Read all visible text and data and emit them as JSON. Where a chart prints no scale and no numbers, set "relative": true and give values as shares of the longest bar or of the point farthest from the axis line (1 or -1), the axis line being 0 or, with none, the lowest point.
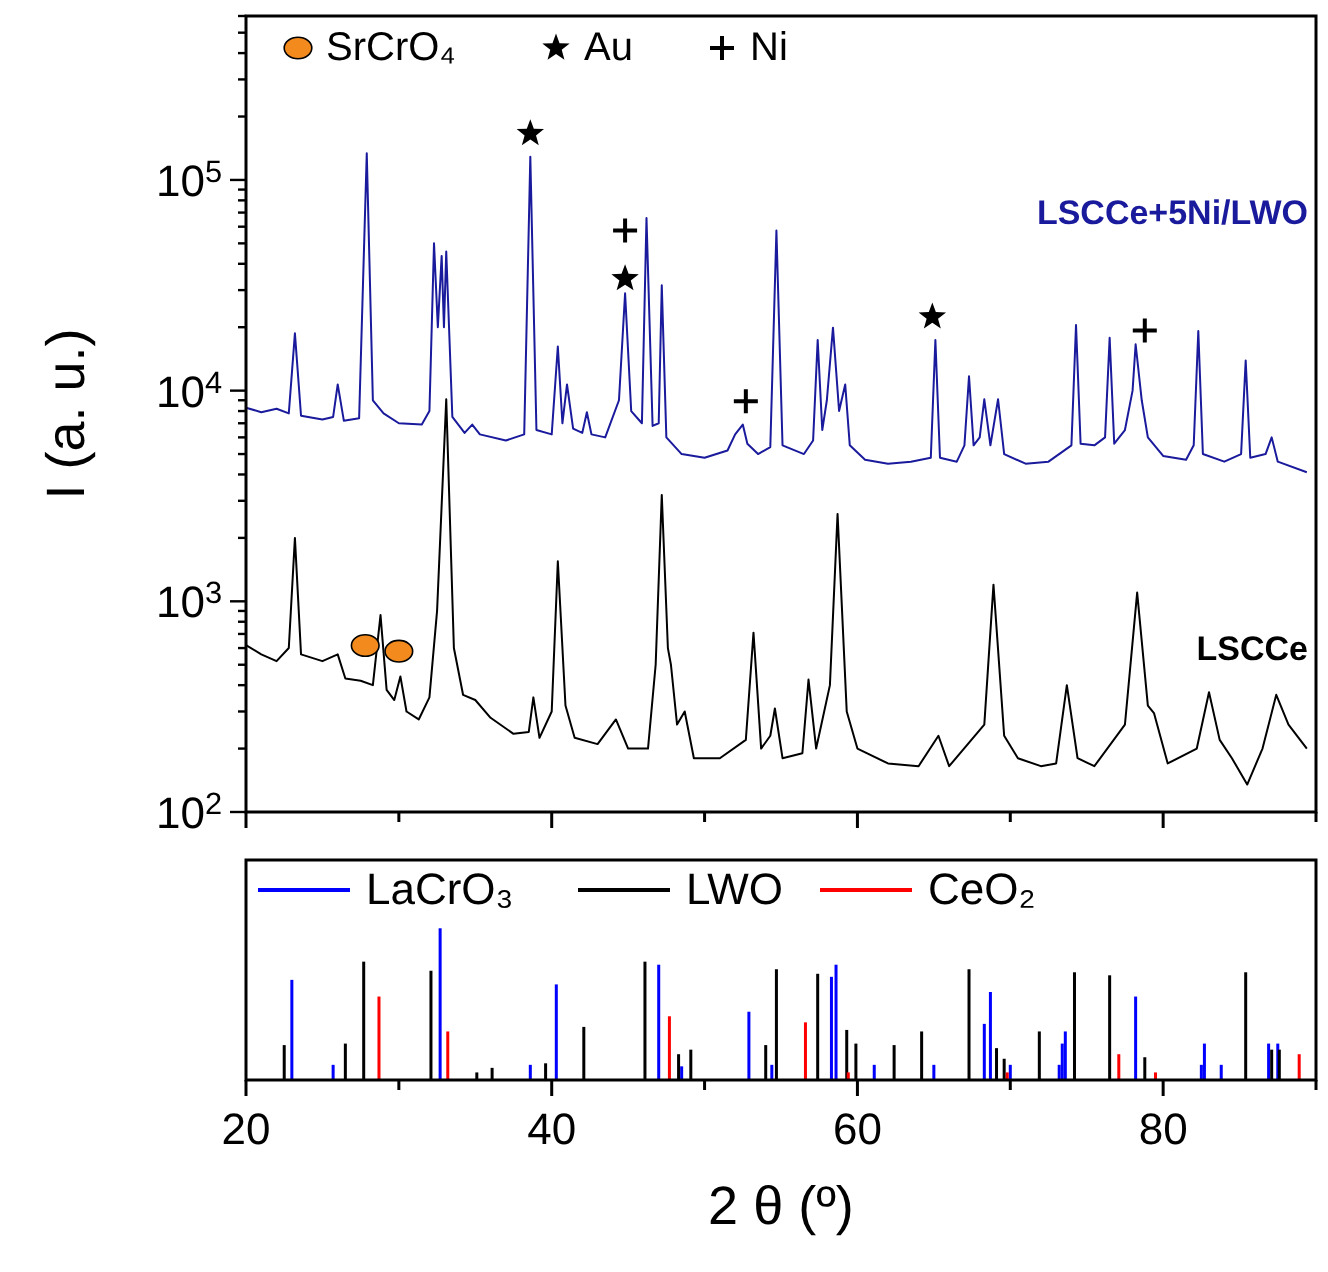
{
  "chart_data": [
    {
      "type": "line",
      "ylabel": "I (a. u.)",
      "log": true,
      "xlim": [
        20,
        90
      ],
      "xticks": [
        20,
        {
          "value": 30,
          "label": null
        },
        40,
        {
          "value": 50,
          "label": null
        },
        60,
        {
          "value": 70,
          "label": null
        },
        80,
        {
          "value": 90,
          "label": null
        }
      ],
      "ylim": [
        100,
        600000
      ],
      "yticks": [
        {
          "value": 100,
          "label": "10$^{2}$"
        },
        {
          "value": 200,
          "label": null
        },
        {
          "value": 300,
          "label": null
        },
        {
          "value": 400,
          "label": null
        },
        {
          "value": 500,
          "label": null
        },
        {
          "value": 600,
          "label": null
        },
        {
          "value": 700,
          "label": null
        },
        {
          "value": 800,
          "label": null
        },
        {
          "value": 900,
          "label": null
        },
        {
          "value": 1000,
          "label": "10$^{3}$"
        },
        {
          "value": 2000,
          "label": null
        },
        {
          "value": 3000,
          "label": null
        },
        {
          "value": 4000,
          "label": null
        },
        {
          "value": 5000,
          "label": null
        },
        {
          "value": 6000,
          "label": null
        },
        {
          "value": 7000,
          "label": null
        },
        {
          "value": 8000,
          "label": null
        },
        {
          "value": 9000,
          "label": null
        },
        {
          "value": 10000,
          "label": "10$^{4}$"
        },
        {
          "value": 20000,
          "label": null
        },
        {
          "value": 30000,
          "label": null
        },
        {
          "value": 40000,
          "label": null
        },
        {
          "value": 50000,
          "label": null
        },
        {
          "value": 60000,
          "label": null
        },
        {
          "value": 70000,
          "label": null
        },
        {
          "value": 80000,
          "label": null
        },
        {
          "value": 90000,
          "label": null
        },
        {
          "value": 100000,
          "label": "10$^{5}$"
        },
        {
          "value": 200000,
          "label": null
        },
        {
          "value": 300000,
          "label": null
        },
        {
          "value": 400000,
          "label": null
        },
        {
          "value": 500000,
          "label": null
        },
        {
          "value": 600000,
          "label": null
        }
      ],
      "tick_labels": "y",
      "legend": "top left",
      "grid": false,
      "series": [
        {
          "name": "LSCCe+5Ni/LWO",
          "color": "#1a1a9c",
          "x": [
            20.0,
            21,
            22,
            22.8,
            23.2,
            23.6,
            25,
            25.7,
            26.0,
            26.4,
            27.4,
            27.9,
            28.3,
            29,
            30,
            31.5,
            32.0,
            32.3,
            32.55,
            32.8,
            32.95,
            33.1,
            33.5,
            34.3,
            34.8,
            35.3,
            37,
            38.2,
            38.6,
            39.0,
            40.0,
            40.4,
            40.7,
            41.0,
            41.4,
            42.0,
            42.3,
            42.6,
            43.5,
            44.4,
            44.8,
            45.2,
            45.9,
            46.2,
            46.6,
            47.0,
            47.2,
            47.5,
            48.5,
            50,
            51.5,
            52.0,
            52.5,
            52.8,
            53.5,
            54.3,
            54.7,
            55.1,
            56.5,
            57.1,
            57.4,
            57.7,
            58.0,
            58.4,
            58.8,
            59.2,
            59.5,
            60.5,
            62,
            63.5,
            64.8,
            65.1,
            65.4,
            66.5,
            67.0,
            67.3,
            67.6,
            68.0,
            68.3,
            68.7,
            69.2,
            69.6,
            71,
            72.5,
            74.0,
            74.3,
            74.6,
            75.5,
            76.2,
            76.5,
            76.8,
            77.5,
            78.0,
            78.2,
            78.6,
            79.0,
            80,
            81.5,
            82.0,
            82.3,
            82.6,
            84,
            85.1,
            85.4,
            85.7,
            86.7,
            87.1,
            87.5,
            89.4
          ],
          "values": [
            8300,
            7900,
            8200,
            7800,
            18700,
            7600,
            7300,
            7500,
            10700,
            7200,
            7400,
            134000,
            9000,
            7800,
            7000,
            6900,
            8000,
            50000,
            20000,
            43600,
            20000,
            45700,
            7500,
            6300,
            6900,
            6200,
            5800,
            6200,
            129000,
            6500,
            6200,
            16200,
            7000,
            10700,
            6600,
            6300,
            7900,
            6200,
            6000,
            9000,
            29000,
            8000,
            7000,
            66000,
            6800,
            7000,
            31600,
            6000,
            5000,
            4800,
            5200,
            6200,
            6900,
            5600,
            5000,
            5400,
            57500,
            5500,
            5000,
            5800,
            17400,
            6500,
            9000,
            19900,
            8000,
            10700,
            5500,
            4700,
            4500,
            4600,
            4800,
            17400,
            4800,
            4600,
            5500,
            11700,
            5500,
            6000,
            9100,
            5500,
            9100,
            5000,
            4500,
            4600,
            5500,
            20500,
            5600,
            5500,
            6000,
            17800,
            5600,
            6500,
            10000,
            16600,
            9000,
            6000,
            4900,
            4700,
            5500,
            19200,
            5000,
            4600,
            5000,
            13900,
            4800,
            5000,
            6000,
            4600,
            4100
          ]
        },
        {
          "name": "LSCCe",
          "color": "#000000",
          "x": [
            20.0,
            21,
            22,
            22.8,
            23.2,
            23.6,
            25,
            26.0,
            26.5,
            27.5,
            28.3,
            28.8,
            29.2,
            29.7,
            30.1,
            30.5,
            31.3,
            32,
            32.5,
            33.1,
            33.6,
            34.2,
            35,
            36,
            37.5,
            38.5,
            38.8,
            39.2,
            40.0,
            40.4,
            40.9,
            41.5,
            43,
            44.2,
            45,
            46.3,
            46.8,
            47.2,
            47.6,
            47.8,
            48.2,
            48.7,
            49.3,
            51,
            52.7,
            53.2,
            53.7,
            54.3,
            54.6,
            55.1,
            56.4,
            56.8,
            57.3,
            58.2,
            58.7,
            59.3,
            60,
            62,
            64,
            65.3,
            66,
            68.3,
            68.9,
            69.6,
            70.5,
            72,
            73,
            73.7,
            74.4,
            75.5,
            77.5,
            78.3,
            79.0,
            79.4,
            80.3,
            82.2,
            83.0,
            83.7,
            84.5,
            85.5,
            86.5,
            87.4,
            88.2,
            89.4
          ],
          "values": [
            620,
            560,
            520,
            600,
            2000,
            560,
            520,
            560,
            430,
            420,
            400,
            860,
            380,
            340,
            440,
            300,
            275,
            350,
            900,
            9100,
            600,
            360,
            340,
            280,
            235,
            240,
            350,
            225,
            300,
            1550,
            320,
            225,
            210,
            275,
            200,
            200,
            500,
            3200,
            600,
            500,
            260,
            300,
            180,
            180,
            220,
            710,
            200,
            230,
            310,
            180,
            190,
            425,
            200,
            400,
            2600,
            300,
            200,
            170,
            165,
            230,
            165,
            260,
            1200,
            230,
            180,
            165,
            170,
            400,
            180,
            165,
            260,
            1100,
            320,
            295,
            170,
            200,
            370,
            220,
            180,
            135,
            200,
            360,
            260,
            200
          ]
        },
        {
          "name": "SrCrO₄",
          "type": "scatter",
          "marker": "circle",
          "color": "#f28a1e",
          "x": [
            27.8,
            30.0
          ],
          "values": [
            617,
            580
          ]
        },
        {
          "name": "Au",
          "type": "scatter",
          "marker": "star",
          "color": "#000000",
          "x": [
            38.6,
            44.8,
            64.9
          ],
          "values": [
            166000,
            34000,
            22400
          ]
        },
        {
          "name": "Ni",
          "type": "scatter",
          "marker": "cross",
          "color": "#000000",
          "x": [
            44.8,
            52.7,
            78.8
          ],
          "values": [
            57500,
            8900,
            19300
          ]
        }
      ]
    },
    {
      "type": "bar",
      "xlabel": "2 θ (º)",
      "relative": true,
      "xlim": [
        20,
        90
      ],
      "xticks": [
        20,
        {
          "value": 30,
          "label": null
        },
        40,
        {
          "value": 50,
          "label": null
        },
        60,
        {
          "value": 70,
          "label": null
        },
        80,
        {
          "value": 90,
          "label": null
        }
      ],
      "tick_labels": "x",
      "legend": "top",
      "grid": false,
      "series": [
        {
          "name": "LaCrO₃",
          "color": "#0000ff",
          "x": [
            23.0,
            25.7,
            32.7,
            38.6,
            40.3,
            47.0,
            48.5,
            52.9,
            54.4,
            58.3,
            58.6,
            61.1,
            65.0,
            68.3,
            68.7,
            70.0,
            73.2,
            73.4,
            73.6,
            78.2,
            82.5,
            82.7,
            83.8,
            86.9,
            87.5
          ],
          "values": [
            0.66,
            0.1,
            1,
            0.1,
            0.63,
            0.76,
            0.09,
            0.45,
            0.1,
            0.68,
            0.76,
            0.1,
            0.1,
            0.37,
            0.58,
            0.1,
            0.1,
            0.24,
            0.32,
            0.55,
            0.1,
            0.24,
            0.1,
            0.24,
            0.24
          ]
        },
        {
          "name": "LWO",
          "color": "#000000",
          "x": [
            22.5,
            26.5,
            27.7,
            32.1,
            35.1,
            36.1,
            39.6,
            42.1,
            46.1,
            48.3,
            49.1,
            54.0,
            54.7,
            57.4,
            59.3,
            59.9,
            62.4,
            64.2,
            67.3,
            69.1,
            69.6,
            71.9,
            74.2,
            76.5,
            78.8,
            85.4,
            87.1,
            87.6
          ],
          "values": [
            0.23,
            0.24,
            0.78,
            0.72,
            0.05,
            0.08,
            0.11,
            0.35,
            0.78,
            0.17,
            0.2,
            0.23,
            0.73,
            0.7,
            0.33,
            0.24,
            0.23,
            0.32,
            0.73,
            0.21,
            0.14,
            0.32,
            0.71,
            0.69,
            0.15,
            0.71,
            0.2,
            0.2
          ]
        },
        {
          "name": "CeO₂",
          "color": "#ff0000",
          "x": [
            28.7,
            33.2,
            47.7,
            56.6,
            59.4,
            69.8,
            77.1,
            79.5,
            88.9
          ],
          "values": [
            0.55,
            0.32,
            0.42,
            0.38,
            0.05,
            0.05,
            0.17,
            0.05,
            0.17
          ]
        }
      ]
    }
  ]
}
